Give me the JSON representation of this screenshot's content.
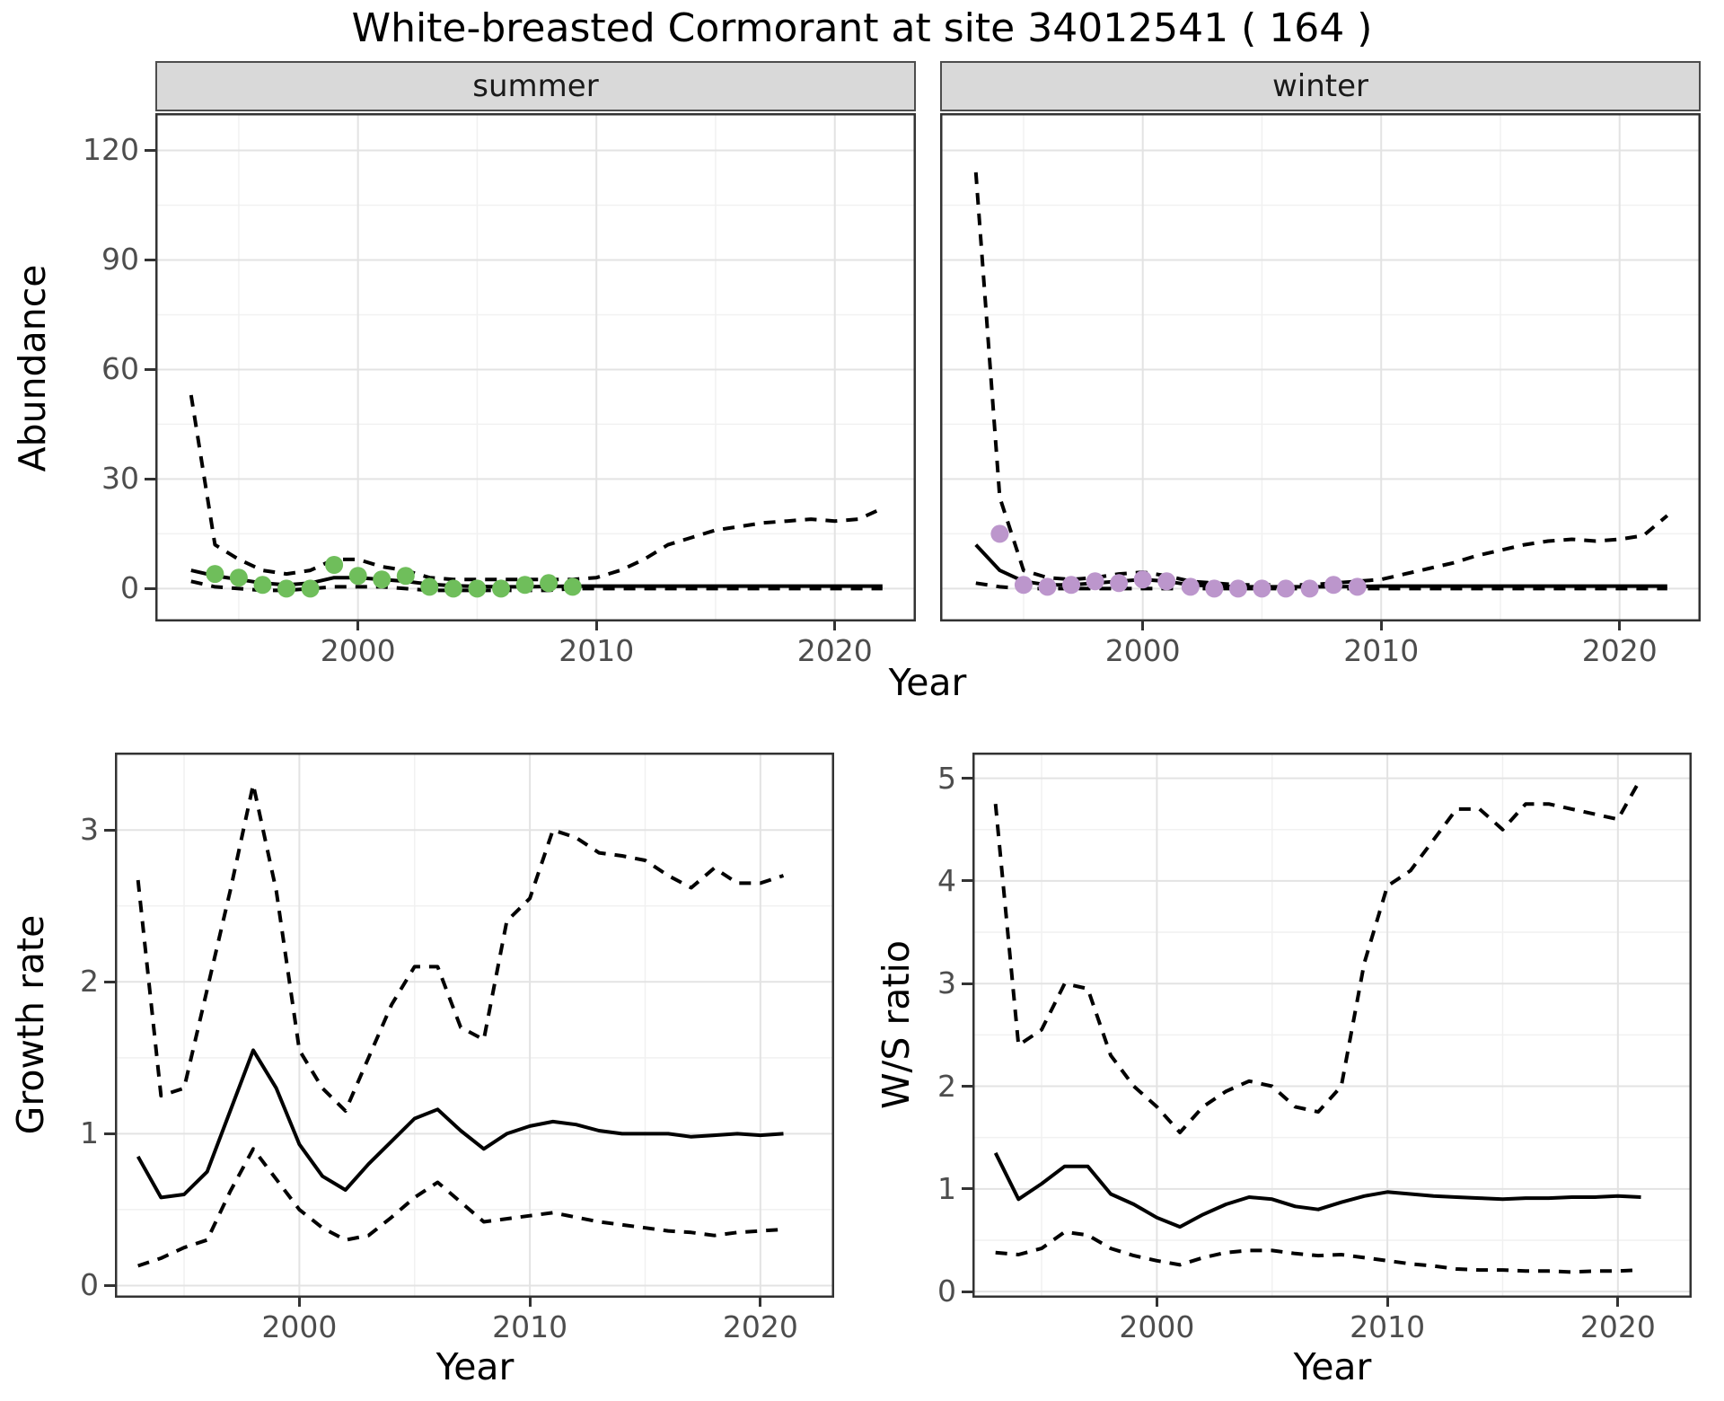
{
  "title": "White-breasted Cormorant at site 34012541 ( 164 )",
  "facets": {
    "summer": "summer",
    "winter": "winter"
  },
  "axes": {
    "abundance_label": "Abundance",
    "year_label": "Year",
    "growth_label": "Growth rate",
    "ws_label": "W/S ratio"
  },
  "colors": {
    "summer_points": "#6FBE5B",
    "winter_points": "#BC96CC",
    "line": "#000000",
    "grid_major": "#E3E3E3",
    "grid_minor": "#F1F1F1",
    "panel_border": "#333333",
    "strip_bg": "#D9D9D9",
    "tick_text": "#4D4D4D"
  },
  "chart_data": [
    {
      "id": "summer",
      "type": "line",
      "facet_label": "summer",
      "xlabel": "Year",
      "ylabel": "Abundance",
      "xlim": [
        1991.5,
        2023.4
      ],
      "ylim": [
        -9,
        130.2
      ],
      "x_ticks": [
        2000,
        2010,
        2020
      ],
      "x_minor": [
        1995,
        2005,
        2015
      ],
      "y_ticks": [
        0,
        30,
        60,
        90,
        120
      ],
      "y_minor": [
        15,
        45,
        75,
        105
      ],
      "x": [
        1993,
        1994,
        1995,
        1996,
        1997,
        1998,
        1999,
        2000,
        2001,
        2002,
        2003,
        2004,
        2005,
        2006,
        2007,
        2008,
        2009,
        2010,
        2011,
        2012,
        2013,
        2014,
        2015,
        2016,
        2017,
        2018,
        2019,
        2020,
        2021,
        2022
      ],
      "series": [
        {
          "name": "upper-ci",
          "style": "dashed",
          "y": [
            53,
            12,
            8,
            5,
            4,
            5,
            8,
            8,
            6,
            5,
            3,
            2.5,
            2.5,
            2.5,
            2.5,
            2.5,
            2.5,
            3,
            5,
            8,
            12,
            14,
            16,
            17,
            18,
            18.5,
            19,
            18.5,
            19,
            22
          ]
        },
        {
          "name": "lower-ci",
          "style": "dashed",
          "y": [
            2,
            0.5,
            0,
            -0.5,
            -0.5,
            0,
            0.5,
            0.5,
            0.5,
            0,
            -0.5,
            -0.5,
            -0.5,
            -0.5,
            -0.5,
            -0.5,
            0,
            0,
            0,
            0,
            0,
            0,
            0,
            0,
            0,
            0,
            0,
            0,
            0,
            0
          ]
        },
        {
          "name": "median",
          "style": "solid",
          "y": [
            5,
            3.5,
            2.5,
            1.5,
            1,
            1.5,
            3,
            3,
            2.5,
            2,
            1.2,
            0.8,
            0.6,
            0.5,
            0.5,
            0.6,
            0.7,
            0.7,
            0.7,
            0.7,
            0.7,
            0.7,
            0.7,
            0.7,
            0.7,
            0.7,
            0.7,
            0.7,
            0.7,
            0.7
          ]
        }
      ],
      "points": {
        "color": "#6FBE5B",
        "x": [
          1994,
          1995,
          1996,
          1997,
          1998,
          1999,
          2000,
          2001,
          2002,
          2003,
          2004,
          2005,
          2006,
          2007,
          2008,
          2009
        ],
        "y": [
          4,
          3,
          1,
          0,
          0,
          6.5,
          3.5,
          2.5,
          3.5,
          0.5,
          0,
          0,
          0,
          1,
          1.5,
          0.5
        ]
      }
    },
    {
      "id": "winter",
      "type": "line",
      "facet_label": "winter",
      "xlabel": "Year",
      "ylabel": "Abundance",
      "xlim": [
        1991.5,
        2023.4
      ],
      "ylim": [
        -9,
        130.2
      ],
      "x_ticks": [
        2000,
        2010,
        2020
      ],
      "x_minor": [
        1995,
        2005,
        2015
      ],
      "y_ticks": [
        0,
        30,
        60,
        90,
        120
      ],
      "y_minor": [
        15,
        45,
        75,
        105
      ],
      "x": [
        1993,
        1994,
        1995,
        1996,
        1997,
        1998,
        1999,
        2000,
        2001,
        2002,
        2003,
        2004,
        2005,
        2006,
        2007,
        2008,
        2009,
        2010,
        2011,
        2012,
        2013,
        2014,
        2015,
        2016,
        2017,
        2018,
        2019,
        2020,
        2021,
        2022
      ],
      "series": [
        {
          "name": "upper-ci",
          "style": "dashed",
          "y": [
            114,
            25,
            5,
            3,
            2.5,
            3,
            4,
            4.5,
            3.5,
            2,
            1.5,
            1,
            1,
            1,
            1,
            1.5,
            2,
            2.5,
            4,
            5.5,
            7,
            9,
            10.5,
            12,
            13,
            13.5,
            13,
            13.5,
            14.5,
            20
          ]
        },
        {
          "name": "lower-ci",
          "style": "dashed",
          "y": [
            1.5,
            0.5,
            0,
            0,
            0,
            0,
            0,
            0,
            0,
            0,
            0,
            0,
            0,
            0,
            0,
            0,
            0,
            0,
            0,
            0,
            0,
            0,
            0,
            0,
            0,
            0,
            0,
            0,
            0,
            0
          ]
        },
        {
          "name": "median",
          "style": "solid",
          "y": [
            12,
            5,
            2,
            1,
            1,
            1.5,
            2,
            2.5,
            2,
            1,
            0.7,
            0.5,
            0.5,
            0.5,
            0.5,
            0.5,
            0.6,
            0.7,
            0.7,
            0.7,
            0.7,
            0.7,
            0.7,
            0.7,
            0.7,
            0.7,
            0.7,
            0.7,
            0.7,
            0.7
          ]
        }
      ],
      "points": {
        "color": "#BC96CC",
        "x": [
          1994,
          1995,
          1996,
          1997,
          1998,
          1999,
          2000,
          2001,
          2002,
          2003,
          2004,
          2005,
          2006,
          2007,
          2008,
          2009
        ],
        "y": [
          15,
          1,
          0.5,
          1,
          2,
          1.5,
          2.5,
          2,
          0.5,
          0,
          0,
          0,
          0,
          0,
          1,
          0.5
        ]
      }
    },
    {
      "id": "growth",
      "type": "line",
      "xlabel": "Year",
      "ylabel": "Growth rate",
      "xlim": [
        1992,
        2023.2
      ],
      "ylim": [
        -0.08,
        3.51
      ],
      "x_ticks": [
        2000,
        2010,
        2020
      ],
      "x_minor": [
        1995,
        2005,
        2015
      ],
      "y_ticks": [
        0,
        1,
        2,
        3
      ],
      "y_minor": [
        0.5,
        1.5,
        2.5,
        3.5
      ],
      "x": [
        1993,
        1994,
        1995,
        1996,
        1997,
        1998,
        1999,
        2000,
        2001,
        2002,
        2003,
        2004,
        2005,
        2006,
        2007,
        2008,
        2009,
        2010,
        2011,
        2012,
        2013,
        2014,
        2015,
        2016,
        2017,
        2018,
        2019,
        2020,
        2021
      ],
      "series": [
        {
          "name": "upper-ci",
          "style": "dashed",
          "y": [
            2.67,
            1.25,
            1.3,
            1.95,
            2.6,
            3.3,
            2.6,
            1.55,
            1.3,
            1.15,
            1.5,
            1.85,
            2.1,
            2.1,
            1.7,
            1.62,
            2.4,
            2.55,
            3.0,
            2.95,
            2.85,
            2.83,
            2.8,
            2.7,
            2.62,
            2.75,
            2.65,
            2.65,
            2.7
          ]
        },
        {
          "name": "lower-ci",
          "style": "dashed",
          "y": [
            0.13,
            0.18,
            0.25,
            0.3,
            0.62,
            0.9,
            0.7,
            0.5,
            0.38,
            0.3,
            0.33,
            0.45,
            0.58,
            0.68,
            0.55,
            0.42,
            0.44,
            0.46,
            0.48,
            0.45,
            0.42,
            0.4,
            0.38,
            0.36,
            0.35,
            0.33,
            0.35,
            0.36,
            0.37
          ]
        },
        {
          "name": "median",
          "style": "solid",
          "y": [
            0.85,
            0.58,
            0.6,
            0.75,
            1.15,
            1.55,
            1.3,
            0.93,
            0.72,
            0.63,
            0.8,
            0.95,
            1.1,
            1.16,
            1.02,
            0.9,
            1.0,
            1.05,
            1.08,
            1.06,
            1.02,
            1.0,
            1.0,
            1.0,
            0.98,
            0.99,
            1.0,
            0.99,
            1.0
          ]
        }
      ]
    },
    {
      "id": "ws",
      "type": "line",
      "xlabel": "Year",
      "ylabel": "W/S ratio",
      "xlim": [
        1992,
        2023.2
      ],
      "ylim": [
        -0.06,
        5.25
      ],
      "x_ticks": [
        2000,
        2010,
        2020
      ],
      "x_minor": [
        1995,
        2005,
        2015
      ],
      "y_ticks": [
        0,
        1,
        2,
        3,
        4,
        5
      ],
      "y_minor": [
        0.5,
        1.5,
        2.5,
        3.5,
        4.5
      ],
      "x": [
        1993,
        1994,
        1995,
        1996,
        1997,
        1998,
        1999,
        2000,
        2001,
        2002,
        2003,
        2004,
        2005,
        2006,
        2007,
        2008,
        2009,
        2010,
        2011,
        2012,
        2013,
        2014,
        2015,
        2016,
        2017,
        2018,
        2019,
        2020,
        2021
      ],
      "series": [
        {
          "name": "upper-ci",
          "style": "dashed",
          "y": [
            4.75,
            2.4,
            2.55,
            3.0,
            2.95,
            2.3,
            2.0,
            1.8,
            1.55,
            1.8,
            1.95,
            2.05,
            2.0,
            1.8,
            1.75,
            2.0,
            3.2,
            3.95,
            4.1,
            4.4,
            4.7,
            4.7,
            4.5,
            4.75,
            4.75,
            4.7,
            4.65,
            4.6,
            5.0
          ]
        },
        {
          "name": "lower-ci",
          "style": "dashed",
          "y": [
            0.38,
            0.36,
            0.42,
            0.58,
            0.55,
            0.42,
            0.35,
            0.3,
            0.26,
            0.33,
            0.38,
            0.4,
            0.4,
            0.37,
            0.35,
            0.36,
            0.33,
            0.3,
            0.27,
            0.25,
            0.22,
            0.21,
            0.21,
            0.2,
            0.2,
            0.19,
            0.2,
            0.2,
            0.21
          ]
        },
        {
          "name": "median",
          "style": "solid",
          "y": [
            1.35,
            0.9,
            1.05,
            1.22,
            1.22,
            0.95,
            0.85,
            0.72,
            0.63,
            0.75,
            0.85,
            0.92,
            0.9,
            0.83,
            0.8,
            0.87,
            0.93,
            0.97,
            0.95,
            0.93,
            0.92,
            0.91,
            0.9,
            0.91,
            0.91,
            0.92,
            0.92,
            0.93,
            0.92
          ]
        }
      ]
    }
  ]
}
